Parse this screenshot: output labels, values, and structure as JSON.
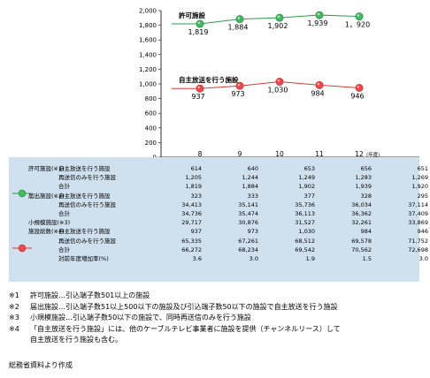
{
  "chart_data": {
    "type": "line",
    "categories": [
      "8",
      "9",
      "10",
      "11",
      "12"
    ],
    "year_unit": "(年度)",
    "yticks": [
      "2,000",
      "1,800",
      "1,600",
      "1,400",
      "1,200",
      "1,000",
      "800",
      "600",
      "400",
      "200",
      "0"
    ],
    "ylim": [
      0,
      2000
    ],
    "series": [
      {
        "name": "許可施設",
        "color": "#2e9a4e",
        "fill": "#49b865",
        "values": [
          1819,
          1884,
          1902,
          1939,
          1920
        ],
        "labels": [
          "1,819",
          "1,884",
          "1,902",
          "1,939",
          "1，920"
        ]
      },
      {
        "name": "自主放送を行う施設",
        "color": "#d23a3a",
        "fill": "#e94a4a",
        "values": [
          937,
          973,
          1030,
          984,
          946
        ],
        "labels": [
          "937",
          "973",
          "1,030",
          "984",
          "946"
        ]
      }
    ]
  },
  "table": {
    "groups": [
      {
        "label": "許可施設(※1)",
        "rows": [
          {
            "label": "自主放送を行う施設",
            "values": [
              "614",
              "640",
              "653",
              "656",
              "651"
            ]
          },
          {
            "label": "再送信のみを行う施設",
            "values": [
              "1,205",
              "1,244",
              "1,249",
              "1,283",
              "1,269"
            ]
          },
          {
            "label": "合計",
            "values": [
              "1,819",
              "1,884",
              "1,902",
              "1,939",
              "1,920"
            ]
          }
        ]
      },
      {
        "label": "届出施設(※2)",
        "rows": [
          {
            "label": "自主放送を行う施設",
            "values": [
              "323",
              "333",
              "377",
              "328",
              "295"
            ]
          },
          {
            "label": "再送信のみを行う施設",
            "values": [
              "34,413",
              "35,141",
              "35,736",
              "36,034",
              "37,114"
            ]
          },
          {
            "label": "合計",
            "values": [
              "34,736",
              "35,474",
              "36,113",
              "36,362",
              "37,409"
            ]
          }
        ]
      },
      {
        "label": "小規模施設(※3)",
        "rows": [
          {
            "label": "",
            "values": [
              "29,717",
              "30,876",
              "31,527",
              "32,261",
              "33,869"
            ]
          }
        ]
      },
      {
        "label": "施設総数(※4)",
        "rows": [
          {
            "label": "自主放送を行う施設",
            "values": [
              "937",
              "973",
              "1,030",
              "984",
              "946"
            ]
          },
          {
            "label": "再送信のみを行う施設",
            "values": [
              "65,335",
              "67,261",
              "68,512",
              "69,578",
              "71,752"
            ]
          },
          {
            "label": "合計",
            "values": [
              "66,272",
              "68,234",
              "69,542",
              "70,562",
              "72,698"
            ]
          },
          {
            "label": "対前年度増加率(%)",
            "values": [
              "3.6",
              "3.0",
              "1.9",
              "1.5",
              "3.0"
            ]
          }
        ]
      }
    ]
  },
  "notes": [
    {
      "mark": "※1",
      "text": "許可施設…引込端子数501以上の施設"
    },
    {
      "mark": "※2",
      "text": "届出施設…引込端子数51以上500以下の施設及び引込端子数50以下の施設で自主放送を行う施設"
    },
    {
      "mark": "※3",
      "text": "小規模施設…引込端子数50以下の施設で、同時再送信のみを行う施設"
    },
    {
      "mark": "※4",
      "text": "「自主放送を行う施設」には、他のケーブルテレビ事業者に施設を提供（チャンネルリース）して"
    }
  ],
  "note_continuation": "自主放送を行う施設も含む。",
  "source": "総務省資料より作成"
}
